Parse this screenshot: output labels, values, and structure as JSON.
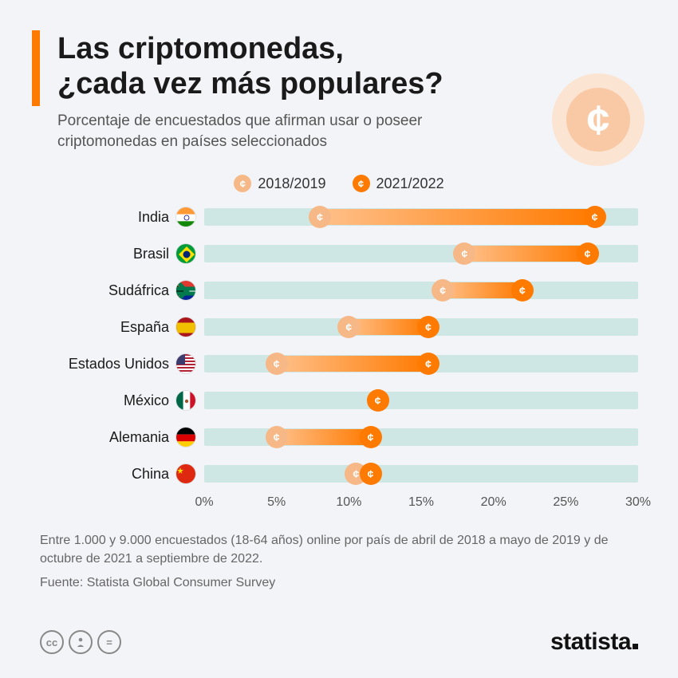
{
  "title_line1": "Las criptomonedas,",
  "title_line2": "¿cada vez más populares?",
  "subtitle": "Porcentaje de encuestados que afirman usar o poseer criptomonedas en países seleccionados",
  "legend": {
    "period1": "2018/2019",
    "period2": "2021/2022",
    "color1": "#f7b887",
    "color2": "#ff7a00",
    "glyph": "¢"
  },
  "chart": {
    "type": "dumbbell",
    "xmin": 0,
    "xmax": 30,
    "xtick_step": 5,
    "tick_labels": [
      "0%",
      "5%",
      "10%",
      "15%",
      "20%",
      "25%",
      "30%"
    ],
    "stripe_color": "#cfe7e4",
    "gradient_from": "#ffc08a",
    "gradient_to": "#ff7a00",
    "marker_glyph": "¢",
    "rows": [
      {
        "label": "India",
        "flag": "in",
        "v1": 8,
        "v2": 27
      },
      {
        "label": "Brasil",
        "flag": "br",
        "v1": 18,
        "v2": 26.5
      },
      {
        "label": "Sudáfrica",
        "flag": "za",
        "v1": 16.5,
        "v2": 22
      },
      {
        "label": "España",
        "flag": "es",
        "v1": 10,
        "v2": 15.5
      },
      {
        "label": "Estados Unidos",
        "flag": "us",
        "v1": 5,
        "v2": 15.5
      },
      {
        "label": "México",
        "flag": "mx",
        "v1": 12,
        "v2": 12
      },
      {
        "label": "Alemania",
        "flag": "de",
        "v1": 5,
        "v2": 11.5
      },
      {
        "label": "China",
        "flag": "cn",
        "v1": 10.5,
        "v2": 11.5
      }
    ]
  },
  "notes": "Entre 1.000 y 9.000 encuestados (18-64 años) online por país de abril de 2018 a mayo de 2019 y de octubre de 2021 a septiembre de 2022.",
  "source": "Fuente: Statista Global Consumer Survey",
  "logo": "statista",
  "cc": [
    "cc",
    "BY",
    "="
  ]
}
